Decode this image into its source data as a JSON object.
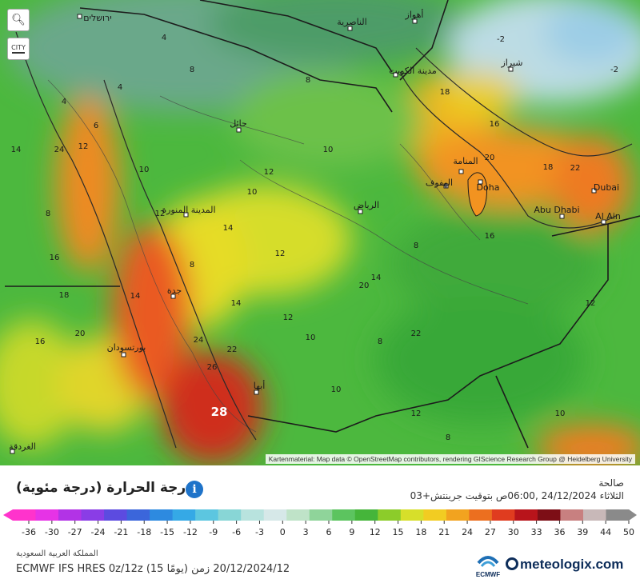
{
  "map": {
    "attribution": "Kartenmaterial: Map data © OpenStreetMap contributors, rendering GIScience Research Group @ Heidelberg University",
    "highlight_value": "28",
    "cities": [
      {
        "name": "ירושלים"
      },
      {
        "name": "الناصرية"
      },
      {
        "name": "أهواز"
      },
      {
        "name": "مدينة الكويت"
      },
      {
        "name": "شيراز"
      },
      {
        "name": "حائل"
      },
      {
        "name": "المنامة"
      },
      {
        "name": "الهفوف"
      },
      {
        "name": "Doha"
      },
      {
        "name": "Dubai"
      },
      {
        "name": "Abu Dhabi"
      },
      {
        "name": "Al Ain"
      },
      {
        "name": "المدينة المنورة"
      },
      {
        "name": "الرياض"
      },
      {
        "name": "جدة"
      },
      {
        "name": "بورتسودان"
      },
      {
        "name": "أبها"
      },
      {
        "name": "الغردقة"
      }
    ],
    "isotherm_labels": [
      "4",
      "4",
      "8",
      "-2",
      "-2",
      "4",
      "6",
      "8",
      "10",
      "12",
      "14",
      "16",
      "18",
      "20",
      "22",
      "24",
      "26",
      "8",
      "10",
      "12",
      "14",
      "16",
      "18",
      "20",
      "22",
      "8",
      "10",
      "12",
      "8",
      "10",
      "12",
      "14",
      "16",
      "20",
      "22",
      "24",
      "12",
      "14",
      "16",
      "18",
      "8",
      "10",
      "12",
      "14",
      "8",
      "10",
      "12"
    ],
    "zoom_icon": "zoom-in-icon",
    "city_toggle_label": "CITY"
  },
  "legend": {
    "title": "درجة الحرارة (درجة مئوية)",
    "info_icon": "info-icon",
    "valid_label": "صالحة",
    "valid_time": "الثلاثاء 24/12/2024 ,06:00ص بتوقيت جرينتش+03",
    "scale_values": [
      "-36",
      "-30",
      "-27",
      "-24",
      "-21",
      "-18",
      "-15",
      "-12",
      "-9",
      "-6",
      "-3",
      "0",
      "3",
      "6",
      "9",
      "12",
      "15",
      "18",
      "21",
      "24",
      "27",
      "30",
      "33",
      "36",
      "39",
      "44",
      "50"
    ],
    "scale_colors": [
      "#ff33cc",
      "#e633e6",
      "#b233e6",
      "#8a3de6",
      "#5c4be0",
      "#3b66db",
      "#2d8ae0",
      "#35a9e6",
      "#5cc6e0",
      "#88d6d6",
      "#b8e3de",
      "#d6e8e8",
      "#bfe3c8",
      "#8fd49a",
      "#5cc45f",
      "#45b53a",
      "#8ccc2a",
      "#d7df2a",
      "#f2cc22",
      "#f2a31f",
      "#ec6f1f",
      "#e03c1f",
      "#b8141b",
      "#7d0e16",
      "#c88080",
      "#c8b8b8",
      "#8a8a8a"
    ]
  },
  "footer": {
    "region": "المملكة العربية السعودية",
    "model_run": "ECMWF IFS HRES 0z/12z (15 يومًا) 20/12/2024/12 زمن",
    "brand": "meteologix.com",
    "ecmwf_label": "ECMWF"
  }
}
